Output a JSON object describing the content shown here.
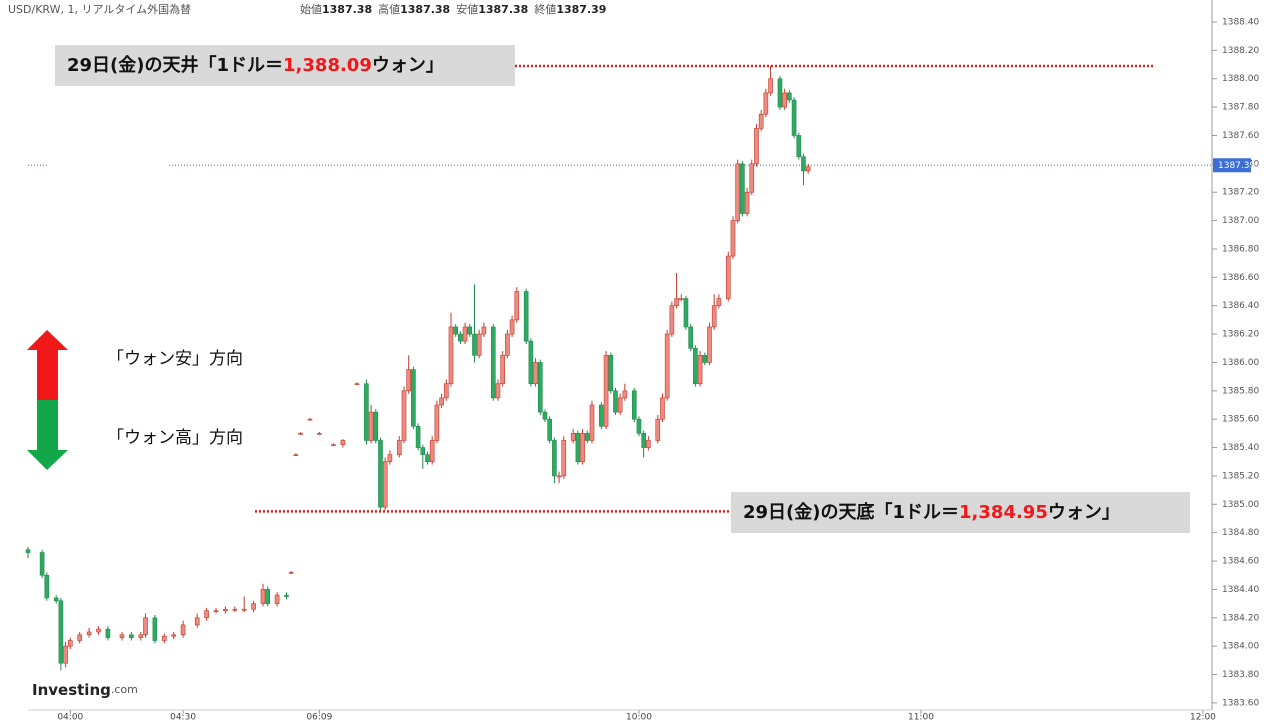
{
  "chart_data": {
    "type": "candlestick",
    "symbol": "USD/KRW, 1, リアルタイム外国為替",
    "header_stats": [
      {
        "name": "始値",
        "value": 1387.38
      },
      {
        "name": "高値",
        "value": 1387.38
      },
      {
        "name": "安値",
        "value": 1387.38
      },
      {
        "name": "終値",
        "value": 1387.39
      }
    ],
    "last_price": 1387.39,
    "up_color": "#ef8a80",
    "down_color": "#2eaa63",
    "xlim": [
      0,
      251.5
    ],
    "xticks": [
      {
        "value": 9,
        "label": "04:00"
      },
      {
        "value": 33,
        "label": "04:30"
      },
      {
        "value": 62,
        "label": "06:09"
      },
      {
        "value": 130,
        "label": "10:00"
      },
      {
        "value": 190,
        "label": "11:00"
      },
      {
        "value": 250,
        "label": "12:00"
      }
    ],
    "ylim": [
      1383.55,
      1388.555
    ],
    "yticks": [
      {
        "value": 1383.6,
        "label": "1383.60"
      },
      {
        "value": 1383.8,
        "label": "1383.80"
      },
      {
        "value": 1384.0,
        "label": "1384.00"
      },
      {
        "value": 1384.2,
        "label": "1384.20"
      },
      {
        "value": 1384.4,
        "label": "1384.40"
      },
      {
        "value": 1384.6,
        "label": "1384.60"
      },
      {
        "value": 1384.8,
        "label": "1384.80"
      },
      {
        "value": 1385.0,
        "label": "1385.00"
      },
      {
        "value": 1385.2,
        "label": "1385.20"
      },
      {
        "value": 1385.4,
        "label": "1385.40"
      },
      {
        "value": 1385.6,
        "label": "1385.60"
      },
      {
        "value": 1385.8,
        "label": "1385.80"
      },
      {
        "value": 1386.0,
        "label": "1386.00"
      },
      {
        "value": 1386.2,
        "label": "1386.20"
      },
      {
        "value": 1386.4,
        "label": "1386.40"
      },
      {
        "value": 1386.6,
        "label": "1386.60"
      },
      {
        "value": 1386.8,
        "label": "1386.80"
      },
      {
        "value": 1387.0,
        "label": "1387.00"
      },
      {
        "value": 1387.2,
        "label": "1387.20"
      },
      {
        "value": 1387.4,
        "label": "1387.40"
      },
      {
        "value": 1387.6,
        "label": "1387.60"
      },
      {
        "value": 1387.8,
        "label": "1387.80"
      },
      {
        "value": 1388.0,
        "label": "1388.00"
      },
      {
        "value": 1388.2,
        "label": "1388.20"
      },
      {
        "value": 1388.4,
        "label": "1388.40"
      }
    ],
    "annotations": [
      {
        "prefix": "29日(金)の天井「1ドル＝",
        "level": {
          "value": 1388.09,
          "label": "1,388.09"
        },
        "suffix": "ウォン」"
      },
      {
        "prefix": "29日(金)の天底「1ドル＝",
        "level": {
          "value": 1384.95,
          "label": "1,384.95"
        },
        "suffix": "ウォン」"
      }
    ],
    "direction_labels": [
      "「ウォン安」方向",
      "「ウォン高」方向"
    ],
    "source": "Investing",
    "source_suffix": ".com",
    "candles": [
      [
        0,
        1384.68,
        1384.7,
        1384.62,
        1384.66
      ],
      [
        3,
        1384.66,
        1384.68,
        1384.48,
        1384.5
      ],
      [
        4,
        1384.5,
        1384.52,
        1384.32,
        1384.34
      ],
      [
        6,
        1384.34,
        1384.36,
        1384.3,
        1384.32
      ],
      [
        7,
        1384.32,
        1384.34,
        1383.83,
        1383.88
      ],
      [
        8,
        1383.88,
        1384.03,
        1383.85,
        1384.0
      ],
      [
        9,
        1384.0,
        1384.06,
        1383.98,
        1384.04
      ],
      [
        11,
        1384.04,
        1384.1,
        1384.02,
        1384.08
      ],
      [
        13,
        1384.08,
        1384.13,
        1384.06,
        1384.1
      ],
      [
        15,
        1384.1,
        1384.14,
        1384.08,
        1384.12
      ],
      [
        17,
        1384.12,
        1384.14,
        1384.04,
        1384.06
      ],
      [
        20,
        1384.06,
        1384.1,
        1384.04,
        1384.08
      ],
      [
        22,
        1384.08,
        1384.1,
        1384.04,
        1384.06
      ],
      [
        24,
        1384.06,
        1384.1,
        1384.04,
        1384.08
      ],
      [
        25,
        1384.08,
        1384.23,
        1384.06,
        1384.2
      ],
      [
        27,
        1384.2,
        1384.22,
        1384.02,
        1384.04
      ],
      [
        29,
        1384.04,
        1384.09,
        1384.02,
        1384.07
      ],
      [
        31,
        1384.07,
        1384.1,
        1384.05,
        1384.08
      ],
      [
        33,
        1384.08,
        1384.18,
        1384.06,
        1384.15
      ],
      [
        36,
        1384.15,
        1384.23,
        1384.13,
        1384.2
      ],
      [
        38,
        1384.2,
        1384.27,
        1384.18,
        1384.25
      ],
      [
        40,
        1384.25,
        1384.27,
        1384.23,
        1384.25
      ],
      [
        42,
        1384.25,
        1384.28,
        1384.23,
        1384.26
      ],
      [
        44,
        1384.26,
        1384.28,
        1384.24,
        1384.26
      ],
      [
        46,
        1384.26,
        1384.35,
        1384.24,
        1384.26
      ],
      [
        48,
        1384.26,
        1384.32,
        1384.24,
        1384.3
      ],
      [
        50,
        1384.3,
        1384.44,
        1384.28,
        1384.4
      ],
      [
        51,
        1384.4,
        1384.42,
        1384.28,
        1384.3
      ],
      [
        53,
        1384.3,
        1384.38,
        1384.28,
        1384.36
      ],
      [
        55,
        1384.36,
        1384.38,
        1384.33,
        1384.35
      ],
      [
        56,
        1384.52,
        1384.53,
        1384.51,
        1384.52
      ],
      [
        57,
        1385.35,
        1385.36,
        1385.34,
        1385.35
      ],
      [
        58,
        1385.5,
        1385.51,
        1385.49,
        1385.5
      ],
      [
        60,
        1385.6,
        1385.61,
        1385.59,
        1385.6
      ],
      [
        62,
        1385.5,
        1385.51,
        1385.49,
        1385.5
      ],
      [
        65,
        1385.42,
        1385.43,
        1385.41,
        1385.42
      ],
      [
        67,
        1385.42,
        1385.46,
        1385.4,
        1385.45
      ],
      [
        70,
        1385.85,
        1385.86,
        1385.84,
        1385.85
      ],
      [
        72,
        1385.85,
        1385.88,
        1385.42,
        1385.45
      ],
      [
        73,
        1385.45,
        1385.7,
        1385.43,
        1385.65
      ],
      [
        74,
        1385.65,
        1385.67,
        1385.43,
        1385.45
      ],
      [
        75,
        1385.45,
        1385.47,
        1384.95,
        1384.98
      ],
      [
        76,
        1384.98,
        1385.33,
        1384.96,
        1385.3
      ],
      [
        77,
        1385.3,
        1385.38,
        1385.28,
        1385.35
      ],
      [
        79,
        1385.35,
        1385.48,
        1385.33,
        1385.45
      ],
      [
        80,
        1385.45,
        1385.83,
        1385.43,
        1385.8
      ],
      [
        81,
        1385.8,
        1386.05,
        1385.78,
        1385.95
      ],
      [
        82,
        1385.95,
        1385.97,
        1385.53,
        1385.55
      ],
      [
        83,
        1385.55,
        1385.57,
        1385.38,
        1385.4
      ],
      [
        84,
        1385.4,
        1385.42,
        1385.25,
        1385.35
      ],
      [
        85,
        1385.35,
        1385.37,
        1385.28,
        1385.3
      ],
      [
        86,
        1385.3,
        1385.48,
        1385.28,
        1385.45
      ],
      [
        87,
        1385.45,
        1385.73,
        1385.43,
        1385.7
      ],
      [
        88,
        1385.7,
        1385.78,
        1385.68,
        1385.75
      ],
      [
        89,
        1385.75,
        1385.88,
        1385.73,
        1385.85
      ],
      [
        90,
        1385.85,
        1386.35,
        1385.83,
        1386.25
      ],
      [
        91,
        1386.25,
        1386.27,
        1386.18,
        1386.2
      ],
      [
        92,
        1386.2,
        1386.22,
        1386.13,
        1386.15
      ],
      [
        93,
        1386.15,
        1386.28,
        1386.13,
        1386.25
      ],
      [
        94,
        1386.25,
        1386.27,
        1386.18,
        1386.2
      ],
      [
        95,
        1386.2,
        1386.55,
        1386.0,
        1386.05
      ],
      [
        96,
        1386.05,
        1386.23,
        1386.03,
        1386.2
      ],
      [
        97,
        1386.2,
        1386.28,
        1386.18,
        1386.25
      ],
      [
        99,
        1386.25,
        1386.27,
        1385.73,
        1385.75
      ],
      [
        100,
        1385.75,
        1385.88,
        1385.73,
        1385.85
      ],
      [
        101,
        1385.85,
        1386.08,
        1385.83,
        1386.05
      ],
      [
        102,
        1386.05,
        1386.23,
        1386.03,
        1386.2
      ],
      [
        103,
        1386.2,
        1386.33,
        1386.18,
        1386.3
      ],
      [
        104,
        1386.3,
        1386.53,
        1386.28,
        1386.5
      ],
      [
        106,
        1386.5,
        1386.52,
        1386.13,
        1386.15
      ],
      [
        107,
        1386.15,
        1386.17,
        1385.83,
        1385.85
      ],
      [
        108,
        1385.85,
        1386.03,
        1385.83,
        1386.0
      ],
      [
        109,
        1386.0,
        1386.02,
        1385.63,
        1385.65
      ],
      [
        110,
        1385.65,
        1385.67,
        1385.58,
        1385.6
      ],
      [
        111,
        1385.6,
        1385.62,
        1385.43,
        1385.45
      ],
      [
        112,
        1385.45,
        1385.47,
        1385.15,
        1385.2
      ],
      [
        113,
        1385.2,
        1385.23,
        1385.15,
        1385.2
      ],
      [
        114,
        1385.2,
        1385.48,
        1385.18,
        1385.45
      ],
      [
        116,
        1385.45,
        1385.53,
        1385.43,
        1385.5
      ],
      [
        117,
        1385.5,
        1385.52,
        1385.28,
        1385.3
      ],
      [
        118,
        1385.3,
        1385.53,
        1385.28,
        1385.5
      ],
      [
        119,
        1385.5,
        1385.52,
        1385.43,
        1385.45
      ],
      [
        120,
        1385.45,
        1385.73,
        1385.43,
        1385.7
      ],
      [
        122,
        1385.7,
        1385.72,
        1385.53,
        1385.55
      ],
      [
        123,
        1385.55,
        1386.08,
        1385.53,
        1386.05
      ],
      [
        124,
        1386.05,
        1386.07,
        1385.78,
        1385.8
      ],
      [
        125,
        1385.8,
        1385.82,
        1385.63,
        1385.65
      ],
      [
        126,
        1385.65,
        1385.78,
        1385.63,
        1385.75
      ],
      [
        127,
        1385.75,
        1385.85,
        1385.73,
        1385.8
      ],
      [
        129,
        1385.8,
        1385.82,
        1385.58,
        1385.6
      ],
      [
        130,
        1385.6,
        1385.62,
        1385.48,
        1385.5
      ],
      [
        131,
        1385.5,
        1385.52,
        1385.33,
        1385.4
      ],
      [
        132,
        1385.4,
        1385.48,
        1385.38,
        1385.45
      ],
      [
        134,
        1385.45,
        1385.63,
        1385.43,
        1385.6
      ],
      [
        135,
        1385.6,
        1385.78,
        1385.58,
        1385.75
      ],
      [
        136,
        1385.75,
        1386.23,
        1385.73,
        1386.2
      ],
      [
        137,
        1386.2,
        1386.43,
        1386.18,
        1386.4
      ],
      [
        138,
        1386.4,
        1386.63,
        1386.38,
        1386.45
      ],
      [
        139,
        1386.45,
        1386.48,
        1386.43,
        1386.45
      ],
      [
        140,
        1386.45,
        1386.47,
        1386.23,
        1386.25
      ],
      [
        141,
        1386.25,
        1386.27,
        1386.08,
        1386.1
      ],
      [
        142,
        1386.1,
        1386.12,
        1385.83,
        1385.85
      ],
      [
        143,
        1385.85,
        1386.08,
        1385.83,
        1386.05
      ],
      [
        144,
        1386.05,
        1386.07,
        1385.98,
        1386.0
      ],
      [
        145,
        1386.0,
        1386.28,
        1385.98,
        1386.25
      ],
      [
        146,
        1386.25,
        1386.48,
        1386.23,
        1386.4
      ],
      [
        147,
        1386.4,
        1386.48,
        1386.38,
        1386.45
      ],
      [
        149,
        1386.45,
        1386.78,
        1386.43,
        1386.75
      ],
      [
        150,
        1386.75,
        1387.03,
        1386.73,
        1387.0
      ],
      [
        151,
        1387.0,
        1387.43,
        1386.98,
        1387.4
      ],
      [
        152,
        1387.4,
        1387.42,
        1387.03,
        1387.05
      ],
      [
        153,
        1387.05,
        1387.23,
        1387.03,
        1387.2
      ],
      [
        154,
        1387.2,
        1387.43,
        1387.18,
        1387.4
      ],
      [
        155,
        1387.4,
        1387.68,
        1387.38,
        1387.65
      ],
      [
        156,
        1387.65,
        1387.78,
        1387.63,
        1387.75
      ],
      [
        157,
        1387.75,
        1387.93,
        1387.73,
        1387.9
      ],
      [
        158,
        1387.9,
        1388.09,
        1387.88,
        1388.0
      ],
      [
        160,
        1388.0,
        1388.02,
        1387.78,
        1387.8
      ],
      [
        161,
        1387.8,
        1387.93,
        1387.78,
        1387.9
      ],
      [
        162,
        1387.9,
        1387.92,
        1387.83,
        1387.85
      ],
      [
        163,
        1387.85,
        1387.87,
        1387.58,
        1387.6
      ],
      [
        164,
        1387.6,
        1387.62,
        1387.43,
        1387.45
      ],
      [
        165,
        1387.45,
        1387.47,
        1387.25,
        1387.35
      ],
      [
        166,
        1387.35,
        1387.4,
        1387.33,
        1387.38
      ]
    ]
  }
}
